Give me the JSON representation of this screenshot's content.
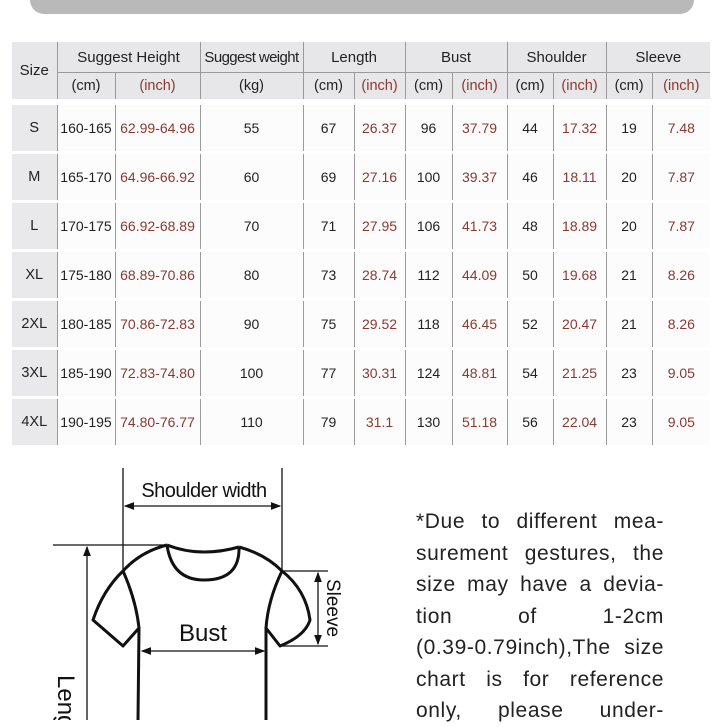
{
  "table": {
    "headers": {
      "size": "Size",
      "height": "Suggest Height",
      "weight": "Suggest weight",
      "length": "Length",
      "bust": "Bust",
      "shoulder": "Shoulder",
      "sleeve": "Sleeve"
    },
    "units": [
      "(cm)",
      "(inch)",
      "(kg)",
      "(cm)",
      "(inch)",
      "(cm)",
      "(inch)",
      "(cm)",
      "(inch)",
      "(cm)",
      "(inch)"
    ],
    "rows": [
      [
        "S",
        "160-165",
        "62.99-64.96",
        "55",
        "67",
        "26.37",
        "96",
        "37.79",
        "44",
        "17.32",
        "19",
        "7.48"
      ],
      [
        "M",
        "165-170",
        "64.96-66.92",
        "60",
        "69",
        "27.16",
        "100",
        "39.37",
        "46",
        "18.11",
        "20",
        "7.87"
      ],
      [
        "L",
        "170-175",
        "66.92-68.89",
        "70",
        "71",
        "27.95",
        "106",
        "41.73",
        "48",
        "18.89",
        "20",
        "7.87"
      ],
      [
        "XL",
        "175-180",
        "68.89-70.86",
        "80",
        "73",
        "28.74",
        "112",
        "44.09",
        "50",
        "19.68",
        "21",
        "8.26"
      ],
      [
        "2XL",
        "180-185",
        "70.86-72.83",
        "90",
        "75",
        "29.52",
        "118",
        "46.45",
        "52",
        "20.47",
        "21",
        "8.26"
      ],
      [
        "3XL",
        "185-190",
        "72.83-74.80",
        "100",
        "77",
        "30.31",
        "124",
        "48.81",
        "54",
        "21.25",
        "23",
        "9.05"
      ],
      [
        "4XL",
        "190-195",
        "74.80-76.77",
        "110",
        "79",
        "31.1",
        "130",
        "51.18",
        "56",
        "22.04",
        "23",
        "9.05"
      ]
    ]
  },
  "diagram": {
    "shoulder_label": "Shoulder width",
    "bust_label": "Bust",
    "sleeve_label": "Sleeve",
    "length_label": "Length"
  },
  "note": {
    "lines": [
      "*Due to different mea-",
      "surement gestures, the",
      "size may have a devia-",
      "tion of 1-2cm",
      "(0.39-0.79inch),The size",
      "chart is for reference",
      "only, please under-"
    ]
  },
  "colors": {
    "inch_text": "#8a3a30",
    "header_bg": "#e7e7e9",
    "top_bar": "#b9b9b9"
  }
}
